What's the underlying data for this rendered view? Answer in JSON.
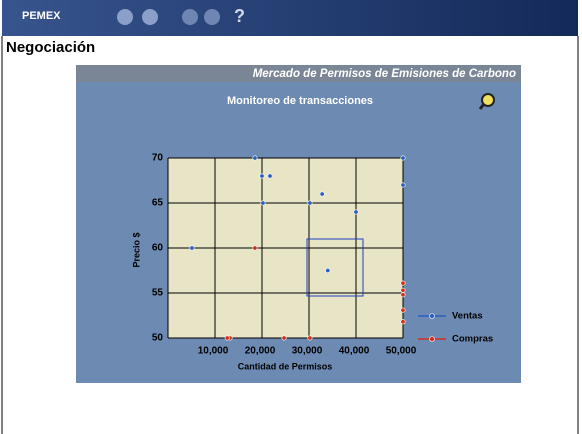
{
  "header": {
    "logo": "PEMEX"
  },
  "page_title": "Negociación",
  "panel_title": "Mercado de Permisos de Emisiones de Carbono",
  "chart_data": {
    "type": "scatter",
    "title": "Monitoreo de transacciones",
    "xlabel": "Cantidad de Permisos",
    "ylabel": "Precio $",
    "xlim": [
      0,
      50000
    ],
    "ylim": [
      50,
      70
    ],
    "xticks": [
      {
        "value": 10000,
        "label": "10,000"
      },
      {
        "value": 20000,
        "label": "20,000"
      },
      {
        "value": 30000,
        "label": "30,000"
      },
      {
        "value": 40000,
        "label": "40,000"
      },
      {
        "value": 50000,
        "label": "50,000"
      }
    ],
    "yticks": [
      50,
      55,
      60,
      65,
      70
    ],
    "grid": true,
    "legend": "right",
    "series": [
      {
        "name": "Ventas",
        "color": "#2a5fc0",
        "x": [
          5100,
          18500,
          20000,
          21700,
          20200,
          30200,
          32800,
          40000,
          50000,
          50000,
          34000
        ],
        "values": [
          60,
          70,
          68,
          68,
          65,
          65,
          66,
          64,
          70,
          67,
          57.5
        ]
      },
      {
        "name": "Compras",
        "color": "#d03020",
        "x": [
          18500,
          13200,
          12600,
          24700,
          30200,
          50000,
          50000,
          50000,
          50000,
          50000
        ],
        "values": [
          60,
          50,
          50,
          50,
          50,
          56.1,
          55.3,
          54.8,
          53.1,
          51.8
        ]
      }
    ]
  }
}
